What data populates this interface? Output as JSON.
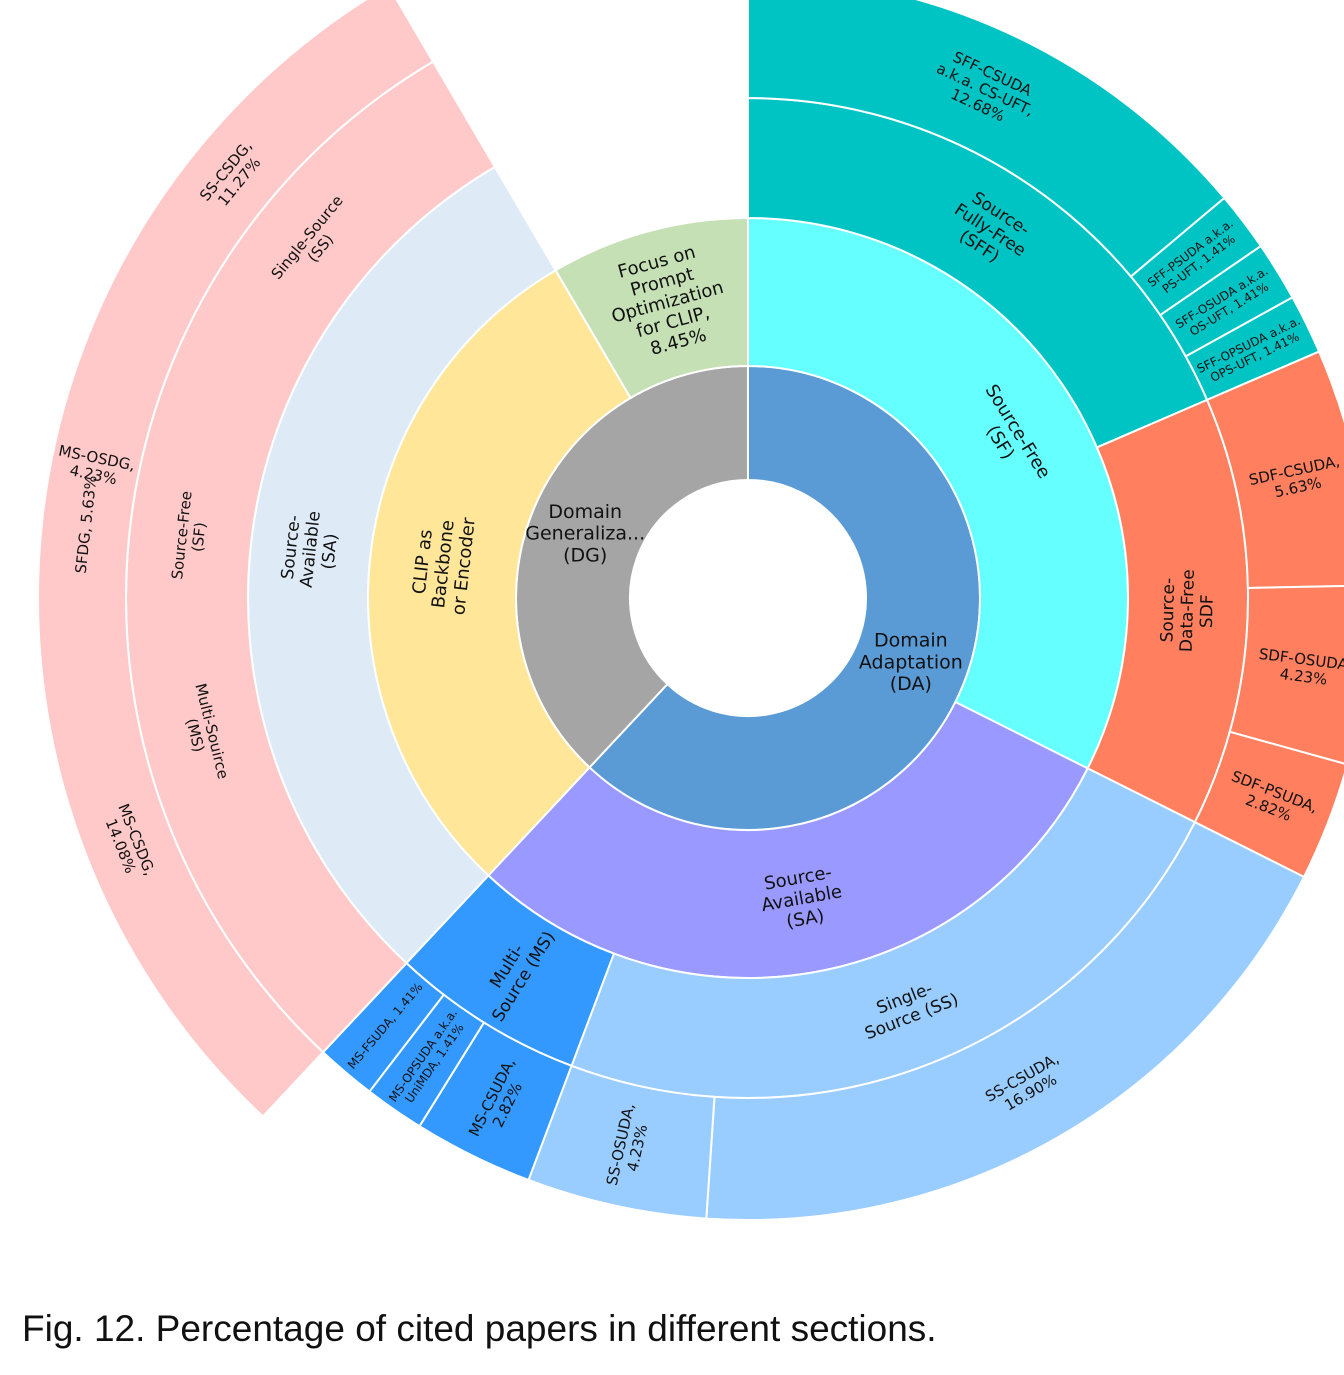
{
  "caption": "Fig. 12. Percentage of cited papers in different sections.",
  "chart_data": {
    "type": "sunburst",
    "rings": [
      [
        {
          "id": "da",
          "label": [
            "Domain",
            "Adaptation",
            "(DA)"
          ],
          "value": 61.97,
          "color": "#5b9bd5"
        },
        {
          "id": "dg",
          "label": [
            "Domain",
            "Generaliza...",
            "(DG)"
          ],
          "value": 38.03,
          "color": "#a5a5a5"
        }
      ],
      [
        {
          "id": "da-sf",
          "parent": "da",
          "label": [
            "Source-Free",
            "(SF)"
          ],
          "value": 32.4,
          "color": "#66ffff"
        },
        {
          "id": "da-sa",
          "parent": "da",
          "label": [
            "Source-",
            "Available",
            "(SA)"
          ],
          "value": 29.57,
          "color": "#9999ff"
        },
        {
          "id": "dg-clip",
          "parent": "dg",
          "label": [
            "CLIP as",
            "Backbone",
            "or Encoder"
          ],
          "value": 29.58,
          "color": "#ffe699"
        },
        {
          "id": "dg-prompt",
          "parent": "dg",
          "label": [
            "Focus on",
            "Prompt",
            "Optimization",
            "for CLIP,",
            "8.45%"
          ],
          "value": 8.45,
          "color": "#c5e0b4"
        }
      ],
      [
        {
          "id": "sff",
          "parent": "da-sf",
          "label": [
            "Source-",
            "Fully-Free",
            "(SFF)"
          ],
          "value": 16.91,
          "color": "#00c4c4"
        },
        {
          "id": "sdf",
          "parent": "da-sf",
          "label": [
            "Source-",
            "Data-Free",
            "SDF"
          ],
          "value": 12.68,
          "color": "#ff7f5e"
        },
        {
          "id": "sa-ss",
          "parent": "da-sa",
          "label": [
            "Single-",
            "Source (SS)"
          ],
          "value": 21.13,
          "color": "#99ccff"
        },
        {
          "id": "sa-ms",
          "parent": "da-sa",
          "label": [
            "Multi-",
            "Source (MS)"
          ],
          "value": 5.64,
          "color": "#3399ff"
        },
        {
          "id": "dg-sa",
          "parent": "dg-clip",
          "label": [
            "Source-",
            "Available",
            "(SA)"
          ],
          "value": 29.58,
          "color": "#deebf7"
        }
      ],
      [
        {
          "id": "sff-csuda",
          "parent": "sff",
          "label": [
            "SFF-CSUDA",
            "a.k.a. CS-UFT,",
            "12.68%"
          ],
          "value": 12.68,
          "color": "#00c4c4"
        },
        {
          "id": "sff-psuda",
          "parent": "sff",
          "label": [
            "SFF-PSUDA a.k.a.",
            "PS-UFT, 1.41%"
          ],
          "value": 1.41,
          "color": "#00c4c4"
        },
        {
          "id": "sff-osuda",
          "parent": "sff",
          "label": [
            "SFF-OSUDA a.k.a.",
            "OS-UFT, 1.41%"
          ],
          "value": 1.41,
          "color": "#00c4c4"
        },
        {
          "id": "sff-opsuda",
          "parent": "sff",
          "label": [
            "SFF-OPSUDA a.k.a.",
            "OPS-UFT, 1.41%"
          ],
          "value": 1.41,
          "color": "#00c4c4"
        },
        {
          "id": "sdf-csuda",
          "parent": "sdf",
          "label": [
            "SDF-CSUDA,",
            "5.63%"
          ],
          "value": 5.63,
          "color": "#ff7f5e"
        },
        {
          "id": "sdf-osuda",
          "parent": "sdf",
          "label": [
            "SDF-OSUDA,",
            "4.23%"
          ],
          "value": 4.23,
          "color": "#ff7f5e"
        },
        {
          "id": "sdf-psuda",
          "parent": "sdf",
          "label": [
            "SDF-PSUDA,",
            "2.82%"
          ],
          "value": 2.82,
          "color": "#ff7f5e"
        },
        {
          "id": "ss-csuda",
          "parent": "sa-ss",
          "label": [
            "SS-CSUDA,",
            "16.90%"
          ],
          "value": 16.9,
          "color": "#99ccff"
        },
        {
          "id": "ss-osuda",
          "parent": "sa-ss",
          "label": [
            "SS-OSUDA,",
            "4.23%"
          ],
          "value": 4.23,
          "color": "#99ccff"
        },
        {
          "id": "ms-csuda",
          "parent": "sa-ms",
          "label": [
            "MS-CSUDA,",
            "2.82%"
          ],
          "value": 2.82,
          "color": "#3399ff"
        },
        {
          "id": "ms-opsuda",
          "parent": "sa-ms",
          "label": [
            "MS-OPSUDA a.k.a.",
            "UniMDA, 1.41%"
          ],
          "value": 1.41,
          "color": "#3399ff"
        },
        {
          "id": "ms-fsuda",
          "parent": "sa-ms",
          "label": [
            "MS-FSUDA, 1.41%"
          ],
          "value": 1.41,
          "color": "#3399ff"
        },
        {
          "id": "dg-ms",
          "parent": "dg-sa",
          "label": [
            "Multi-Souirce",
            "(MS)"
          ],
          "value": 18.31,
          "color": "#ff99ff"
        },
        {
          "id": "dg-ss",
          "parent": "dg-sa",
          "label": [
            "Single-Source",
            "(SS)"
          ],
          "value": 11.27,
          "color": "#00c896"
        },
        {
          "id": "dg-sf",
          "parent": "dg-clip",
          "label": [
            "Source-Free",
            "(SF)"
          ],
          "value": 5.63,
          "color": "#ffc9c9"
        }
      ],
      [
        {
          "id": "ms-csdg",
          "parent": "dg-ms",
          "label": [
            "MS-CSDG,",
            "14.08%"
          ],
          "value": 14.08,
          "color": "#ff99ff"
        },
        {
          "id": "ms-osdg",
          "parent": "dg-ms",
          "label": [
            "MS-OSDG,",
            "4.23%"
          ],
          "value": 4.23,
          "color": "#ff99ff"
        },
        {
          "id": "ss-csdg",
          "parent": "dg-ss",
          "label": [
            "SS-CSDG,",
            "11.27%"
          ],
          "value": 11.27,
          "color": "#00c896"
        },
        {
          "id": "sfdg",
          "parent": "dg-sf",
          "label": [
            "SFDG, 5.63%"
          ],
          "value": 5.63,
          "color": "#ffc9c9"
        }
      ]
    ]
  }
}
